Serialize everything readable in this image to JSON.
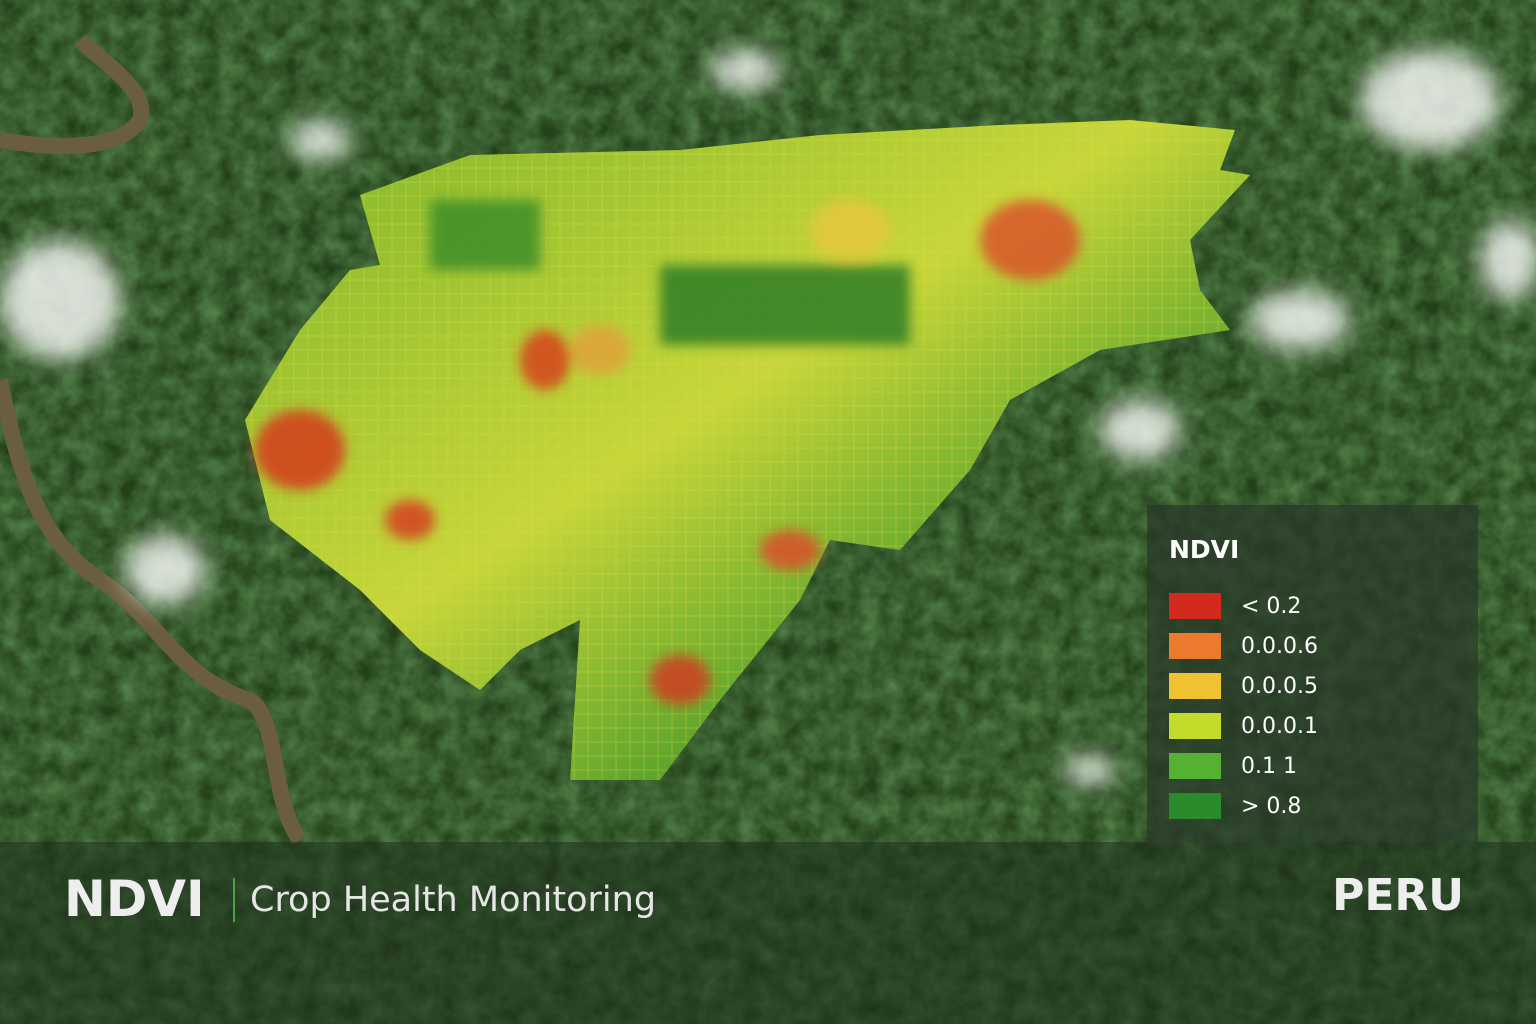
{
  "legend": {
    "title": "NDVI",
    "items": [
      {
        "label": "< 0.2",
        "color": "#d42a1e"
      },
      {
        "label": "0.0.0.6",
        "color": "#ec7a2c"
      },
      {
        "label": "0.0.0.5",
        "color": "#f0c232"
      },
      {
        "label": "0.0.0.1",
        "color": "#c3dc2c"
      },
      {
        "label": "0.1 1",
        "color": "#55b132"
      },
      {
        "label": "> 0.8",
        "color": "#2b8a2c"
      }
    ]
  },
  "footer": {
    "title": "NDVI",
    "subtitle": "Crop Health Monitoring",
    "region": "PERU"
  }
}
